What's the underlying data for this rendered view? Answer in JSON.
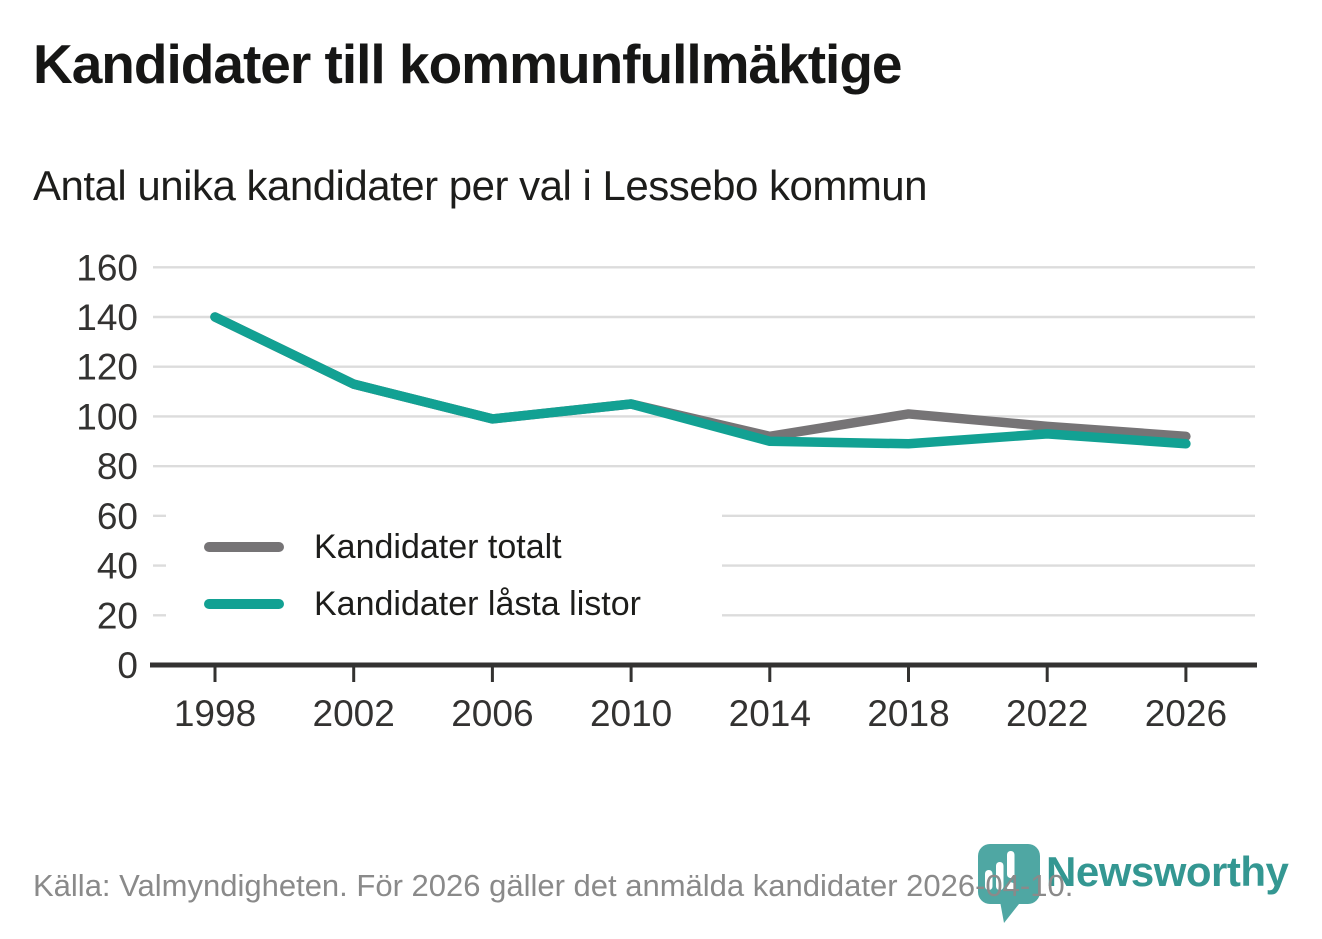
{
  "header": {
    "title": "Kandidater till kommunfullmäktige",
    "subtitle": "Antal unika kandidater per val i Lessebo kommun"
  },
  "chart_data": {
    "type": "line",
    "title": "Kandidater till kommunfullmäktige",
    "subtitle": "Antal unika kandidater per val i Lessebo kommun",
    "categories": [
      "1998",
      "2002",
      "2006",
      "2010",
      "2014",
      "2018",
      "2022",
      "2026"
    ],
    "series": [
      {
        "name": "Kandidater totalt",
        "color": "#767476",
        "values": [
          140,
          113,
          99,
          105,
          92,
          101,
          96,
          92
        ]
      },
      {
        "name": "Kandidater låsta listor",
        "color": "#12a193",
        "values": [
          140,
          113,
          99,
          105,
          90,
          89,
          93,
          89
        ]
      }
    ],
    "xlabel": "",
    "ylabel": "",
    "ylim": [
      0,
      160
    ],
    "yticks": [
      0,
      20,
      40,
      60,
      80,
      100,
      120,
      140,
      160
    ],
    "grid": "horizontal",
    "legend_position": "inside-bottom-left"
  },
  "footer": {
    "source_note": "Källa: Valmyndigheten. För 2026 gäller det anmälda kandidater 2026-04-10."
  },
  "branding": {
    "wordmark": "Newsworthy",
    "logo_icon": "newsworthy-pin-barchart-icon",
    "wordmark_color": "#349792",
    "pin_color": "#4fa7a3"
  },
  "colors": {
    "gridline": "#dcdcdc",
    "axis": "#333231",
    "text": "#1d1d1b",
    "muted_text": "#8a8a8a"
  }
}
